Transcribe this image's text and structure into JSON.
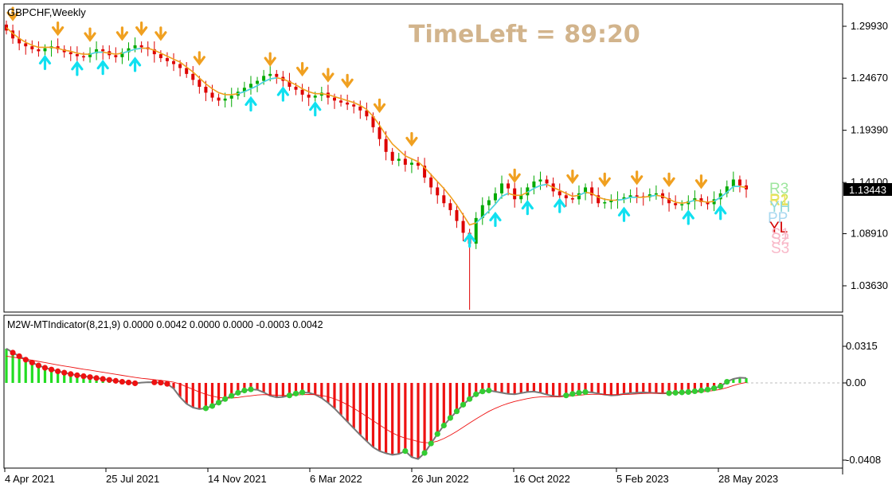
{
  "chart_data": [
    {
      "type": "candlestick",
      "title": "GBPCHF,Weekly",
      "overlay_label": "TimeLeft = 89:20",
      "ylim": [
        1.015,
        1.31
      ],
      "y_ticks": [
        "1.29930",
        "1.24670",
        "1.19390",
        "1.14100",
        "1.08910",
        "1.03630"
      ],
      "y_tick_values": [
        1.2993,
        1.2467,
        1.1939,
        1.141,
        1.0891,
        1.0363
      ],
      "current_price": "1.13443",
      "current_price_value": 1.13443,
      "pivot_labels": [
        {
          "text": "R3",
          "color": "#9ee69e"
        },
        {
          "text": "R2",
          "color": "#c8e655"
        },
        {
          "text": "R1",
          "color": "#f0e060"
        },
        {
          "text": "YH",
          "color": "#90d8d8"
        },
        {
          "text": "PP",
          "color": "#a8d8f0"
        },
        {
          "text": "YL",
          "color": "#d40000"
        },
        {
          "text": "S1",
          "color": "#f8b8c8"
        },
        {
          "text": "S2",
          "color": "#f8b8c8"
        },
        {
          "text": "S3",
          "color": "#f8b8c8"
        }
      ],
      "x_ticks": [
        "4 Apr 2021",
        "25 Jul 2021",
        "14 Nov 2021",
        "6 Mar 2022",
        "26 Jun 2022",
        "16 Oct 2022",
        "5 Feb 2023",
        "28 May 2023"
      ],
      "close_series": [
        1.295,
        1.287,
        1.282,
        1.279,
        1.276,
        1.274,
        1.277,
        1.279,
        1.276,
        1.273,
        1.271,
        1.269,
        1.268,
        1.272,
        1.276,
        1.274,
        1.27,
        1.268,
        1.273,
        1.277,
        1.28,
        1.278,
        1.276,
        1.271,
        1.267,
        1.264,
        1.261,
        1.257,
        1.251,
        1.245,
        1.238,
        1.232,
        1.227,
        1.224,
        1.226,
        1.229,
        1.233,
        1.237,
        1.241,
        1.244,
        1.249,
        1.251,
        1.248,
        1.244,
        1.238,
        1.235,
        1.23,
        1.227,
        1.229,
        1.232,
        1.227,
        1.224,
        1.222,
        1.22,
        1.218,
        1.214,
        1.208,
        1.197,
        1.185,
        1.172,
        1.163,
        1.165,
        1.159,
        1.161,
        1.158,
        1.146,
        1.136,
        1.128,
        1.12,
        1.113,
        1.102,
        1.09,
        1.079,
        1.105,
        1.118,
        1.123,
        1.13,
        1.14,
        1.135,
        1.124,
        1.128,
        1.136,
        1.142,
        1.144,
        1.14,
        1.132,
        1.128,
        1.125,
        1.124,
        1.13,
        1.136,
        1.128,
        1.12,
        1.121,
        1.123,
        1.124,
        1.126,
        1.128,
        1.127,
        1.126,
        1.129,
        1.13,
        1.125,
        1.12,
        1.118,
        1.119,
        1.122,
        1.125,
        1.121,
        1.119,
        1.124,
        1.13,
        1.137,
        1.144,
        1.138,
        1.134
      ],
      "ma_series": [
        1.298,
        1.292,
        1.287,
        1.283,
        1.28,
        1.278,
        1.278,
        1.278,
        1.277,
        1.275,
        1.274,
        1.272,
        1.271,
        1.271,
        1.273,
        1.273,
        1.272,
        1.271,
        1.272,
        1.274,
        1.276,
        1.277,
        1.277,
        1.275,
        1.272,
        1.269,
        1.266,
        1.263,
        1.258,
        1.253,
        1.247,
        1.241,
        1.236,
        1.232,
        1.23,
        1.23,
        1.231,
        1.233,
        1.236,
        1.239,
        1.243,
        1.246,
        1.247,
        1.246,
        1.243,
        1.24,
        1.236,
        1.233,
        1.231,
        1.231,
        1.23,
        1.228,
        1.226,
        1.224,
        1.222,
        1.219,
        1.215,
        1.208,
        1.199,
        1.189,
        1.18,
        1.174,
        1.168,
        1.165,
        1.162,
        1.156,
        1.149,
        1.142,
        1.135,
        1.127,
        1.118,
        1.108,
        1.098,
        1.1,
        1.106,
        1.112,
        1.119,
        1.127,
        1.13,
        1.128,
        1.128,
        1.131,
        1.135,
        1.138,
        1.139,
        1.136,
        1.133,
        1.13,
        1.127,
        1.128,
        1.131,
        1.13,
        1.126,
        1.124,
        1.123,
        1.123,
        1.124,
        1.126,
        1.126,
        1.126,
        1.127,
        1.128,
        1.127,
        1.124,
        1.121,
        1.12,
        1.121,
        1.123,
        1.122,
        1.121,
        1.122,
        1.126,
        1.131,
        1.137,
        1.137,
        1.136
      ],
      "down_arrow_bars": [
        1,
        8,
        13,
        18,
        21,
        24,
        30,
        41,
        46,
        50,
        53,
        58,
        63,
        79,
        88,
        93,
        98,
        103,
        108
      ],
      "up_arrow_bars": [
        6,
        11,
        15,
        20,
        38,
        43,
        48,
        72,
        76,
        81,
        86,
        96,
        106,
        111
      ]
    },
    {
      "type": "histogram",
      "title": "M2W-MTIndicator(8,21,9) 0.0000 0.0042 0.0000 0.0000 -0.0003 0.0042",
      "ylim": [
        -0.0408,
        0.0315
      ],
      "y_ticks": [
        "0.0315",
        "0.00",
        "-0.0408"
      ],
      "y_tick_values": [
        0.0315,
        0.0,
        -0.0408
      ],
      "histogram": [
        0.0295,
        0.026,
        0.023,
        0.02,
        0.0175,
        0.015,
        0.013,
        0.0115,
        0.01,
        0.0088,
        0.0076,
        0.0066,
        0.0058,
        0.005,
        0.0042,
        0.0034,
        0.0026,
        0.0018,
        0.001,
        0.0004,
        -0.0002,
        0.0003,
        0.0006,
        0.0005,
        0.0002,
        -0.0005,
        -0.003,
        -0.0075,
        -0.011,
        -0.013,
        -0.0138,
        -0.0134,
        -0.0122,
        -0.0104,
        -0.0085,
        -0.0068,
        -0.0052,
        -0.004,
        -0.0034,
        -0.0036,
        -0.005,
        -0.0068,
        -0.0076,
        -0.0074,
        -0.0066,
        -0.0056,
        -0.005,
        -0.0052,
        -0.0062,
        -0.008,
        -0.0105,
        -0.0135,
        -0.017,
        -0.0205,
        -0.024,
        -0.0275,
        -0.0308,
        -0.034,
        -0.036,
        -0.0372,
        -0.038,
        -0.0375,
        -0.036,
        -0.0392,
        -0.0402,
        -0.037,
        -0.032,
        -0.027,
        -0.0225,
        -0.0185,
        -0.015,
        -0.0115,
        -0.0085,
        -0.006,
        -0.0045,
        -0.004,
        -0.0046,
        -0.0052,
        -0.0058,
        -0.006,
        -0.0054,
        -0.0048,
        -0.0046,
        -0.0052,
        -0.0062,
        -0.007,
        -0.0072,
        -0.0066,
        -0.0058,
        -0.0052,
        -0.0048,
        -0.005,
        -0.0056,
        -0.0062,
        -0.0066,
        -0.0064,
        -0.0058,
        -0.0054,
        -0.0052,
        -0.005,
        -0.0052,
        -0.0054,
        -0.0055,
        -0.0054,
        -0.0052,
        -0.005,
        -0.0048,
        -0.0044,
        -0.004,
        -0.0035,
        -0.0028,
        -0.0018,
        0.001,
        0.0035,
        0.0045,
        0.0042
      ],
      "signal": [
        0.023,
        0.0222,
        0.0213,
        0.0204,
        0.0195,
        0.0185,
        0.0175,
        0.0165,
        0.0155,
        0.0145,
        0.0136,
        0.0127,
        0.0118,
        0.011,
        0.0101,
        0.0092,
        0.0083,
        0.0074,
        0.0065,
        0.0056,
        0.0047,
        0.004,
        0.0034,
        0.0028,
        0.0022,
        0.0015,
        0.0006,
        -0.0006,
        -0.002,
        -0.0034,
        -0.0048,
        -0.006,
        -0.007,
        -0.0077,
        -0.008,
        -0.008,
        -0.0077,
        -0.0072,
        -0.0068,
        -0.0064,
        -0.0062,
        -0.0063,
        -0.0065,
        -0.0066,
        -0.0066,
        -0.0064,
        -0.0062,
        -0.0061,
        -0.0062,
        -0.0066,
        -0.0073,
        -0.0084,
        -0.0098,
        -0.0115,
        -0.0134,
        -0.0155,
        -0.0177,
        -0.02,
        -0.0222,
        -0.0244,
        -0.0264,
        -0.028,
        -0.0292,
        -0.03,
        -0.031,
        -0.0316,
        -0.0316,
        -0.0308,
        -0.0294,
        -0.0276,
        -0.0256,
        -0.0234,
        -0.0212,
        -0.019,
        -0.017,
        -0.015,
        -0.0134,
        -0.012,
        -0.0108,
        -0.0098,
        -0.009,
        -0.0083,
        -0.0077,
        -0.0074,
        -0.0073,
        -0.0073,
        -0.0073,
        -0.0071,
        -0.0068,
        -0.0065,
        -0.0062,
        -0.006,
        -0.006,
        -0.0061,
        -0.0062,
        -0.0062,
        -0.0061,
        -0.006,
        -0.0058,
        -0.0056,
        -0.0055,
        -0.0055,
        -0.0055,
        -0.0054,
        -0.0053,
        -0.0052,
        -0.0051,
        -0.0049,
        -0.0047,
        -0.0044,
        -0.004,
        -0.0034,
        -0.0025,
        -0.0014,
        -0.0004,
        0.0004
      ],
      "colors": {
        "positive_bar": "#22dd22",
        "negative_bar": "#ee1111",
        "dot_red": "#ee1111",
        "dot_green": "#33cc33",
        "signal_line": "#ee1111",
        "outline": "#777777"
      }
    }
  ],
  "colors": {
    "bull_candle": "#00aa00",
    "bear_candle": "#dd0000",
    "ma_orange": "#f0a020",
    "ma_cyan": "#40d8f0",
    "arrow_down": "#f0a020",
    "arrow_up": "#10e0f0",
    "timeleft": "#d2b48c",
    "price_box": "#000000"
  }
}
